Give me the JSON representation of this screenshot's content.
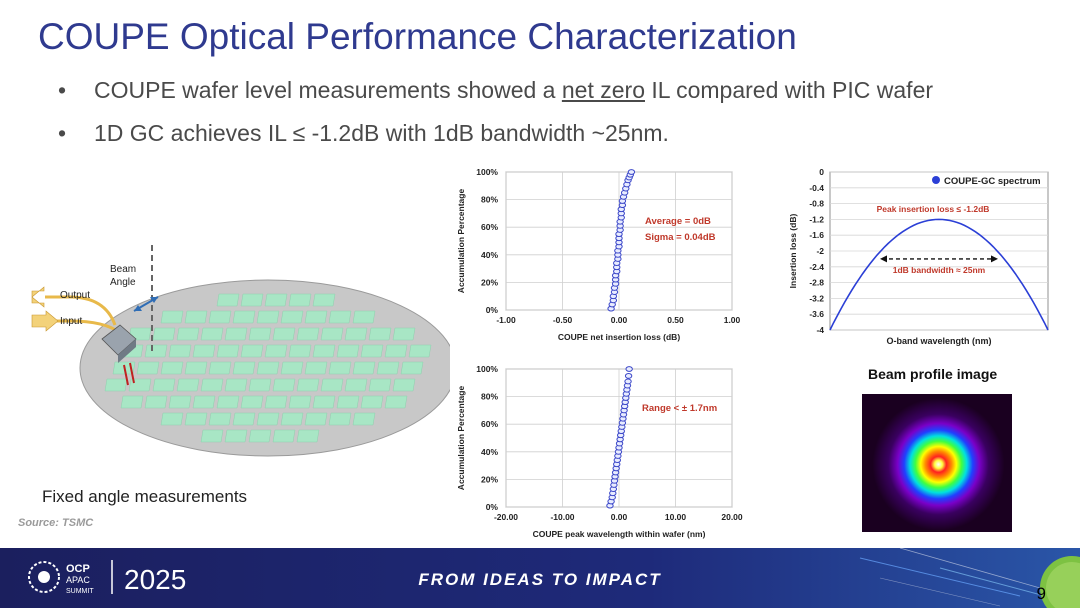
{
  "slide": {
    "title": "COUPE Optical Performance Characterization",
    "bullets": [
      {
        "pre": "COUPE wafer level measurements showed a ",
        "underlined": "net zero",
        "post": " IL compared with PIC wafer"
      },
      {
        "text": "1D GC achieves IL ≤ -1.2dB with 1dB bandwidth ~25nm."
      }
    ],
    "bullet_glyph": "•",
    "page_number": "9",
    "source": "Source: TSMC"
  },
  "wafer_diagram": {
    "caption": "Fixed angle measurements",
    "output_label": "Output",
    "input_label": "Input",
    "beam_angle_label_1": "Beam",
    "beam_angle_label_2": "Angle",
    "colors": {
      "wafer": "#c8c8c8",
      "die": "#a8e6c5",
      "arrow": "#e8b94a"
    }
  },
  "beam_profile": {
    "title": "Beam profile image"
  },
  "footer": {
    "logo_line1": "OCP",
    "logo_line2": "APAC",
    "logo_line3": "SUMMIT",
    "year": "2025",
    "tagline": "FROM IDEAS TO IMPACT",
    "colors": {
      "bg": "#1b1f5e",
      "text": "#ffffff"
    }
  },
  "chart_data": [
    {
      "type": "scatter",
      "xlabel": "COUPE net insertion loss (dB)",
      "ylabel": "Accumulation Percentage",
      "xlim": [
        -1.0,
        1.0
      ],
      "ylim": [
        0,
        100
      ],
      "x_ticks": [
        "-1.00",
        "-0.50",
        "0.00",
        "0.50",
        "1.00"
      ],
      "y_ticks": [
        "0%",
        "20%",
        "40%",
        "60%",
        "80%",
        "100%"
      ],
      "annotations": [
        "Average = 0dB",
        "Sigma = 0.04dB"
      ],
      "series": [
        {
          "x": [
            -0.07,
            -0.06,
            -0.05,
            -0.05,
            -0.04,
            -0.04,
            -0.03,
            -0.03,
            -0.03,
            -0.02,
            -0.02,
            -0.02,
            -0.01,
            -0.01,
            -0.01,
            0.0,
            0.0,
            0.0,
            0.0,
            0.01,
            0.01,
            0.01,
            0.02,
            0.02,
            0.02,
            0.03,
            0.03,
            0.04,
            0.05,
            0.06,
            0.07,
            0.08,
            0.09,
            0.1,
            0.11
          ],
          "y": [
            1,
            4,
            7,
            10,
            13,
            16,
            19,
            22,
            25,
            28,
            31,
            34,
            37,
            40,
            43,
            46,
            49,
            52,
            55,
            58,
            61,
            64,
            67,
            70,
            73,
            76,
            79,
            82,
            85,
            88,
            91,
            94,
            96,
            98,
            100
          ]
        }
      ],
      "grid": true
    },
    {
      "type": "scatter",
      "xlabel": "COUPE peak wavelength within wafer (nm)",
      "ylabel": "Accumulation Percentage",
      "xlim": [
        -20,
        20
      ],
      "ylim": [
        0,
        100
      ],
      "x_ticks": [
        "-20.00",
        "-10.00",
        "0.00",
        "10.00",
        "20.00"
      ],
      "y_ticks": [
        "0%",
        "20%",
        "40%",
        "60%",
        "80%",
        "100%"
      ],
      "annotations": [
        "Range < ± 1.7nm"
      ],
      "series": [
        {
          "x": [
            -1.6,
            -1.4,
            -1.2,
            -1.1,
            -1.0,
            -0.9,
            -0.8,
            -0.7,
            -0.6,
            -0.5,
            -0.4,
            -0.3,
            -0.2,
            -0.1,
            0.0,
            0.1,
            0.2,
            0.3,
            0.4,
            0.5,
            0.6,
            0.7,
            0.8,
            0.9,
            1.0,
            1.1,
            1.2,
            1.3,
            1.4,
            1.5,
            1.6,
            1.7,
            1.8
          ],
          "y": [
            1,
            4,
            7,
            10,
            13,
            16,
            19,
            22,
            25,
            28,
            31,
            34,
            37,
            40,
            43,
            46,
            49,
            52,
            55,
            58,
            61,
            64,
            67,
            70,
            73,
            76,
            79,
            82,
            85,
            88,
            91,
            95,
            100
          ]
        }
      ],
      "grid": true
    },
    {
      "type": "line",
      "xlabel": "O-band wavelength (nm)",
      "ylabel": "Insertion loss (dB)",
      "ylim": [
        -4,
        0
      ],
      "y_ticks": [
        "0",
        "-0.4",
        "-0.8",
        "-1.2",
        "-1.6",
        "-2",
        "-2.4",
        "-2.8",
        "-3.2",
        "-3.6",
        "-4"
      ],
      "legend": "top-right",
      "series": [
        {
          "name": "COUPE-GC spectrum"
        }
      ],
      "annotations": [
        "Peak insertion loss ≤ -1.2dB",
        "1dB bandwidth ≈ 25nm"
      ],
      "peak_il": -1.2,
      "bandwidth_1db_nm": 25,
      "grid": true
    }
  ]
}
